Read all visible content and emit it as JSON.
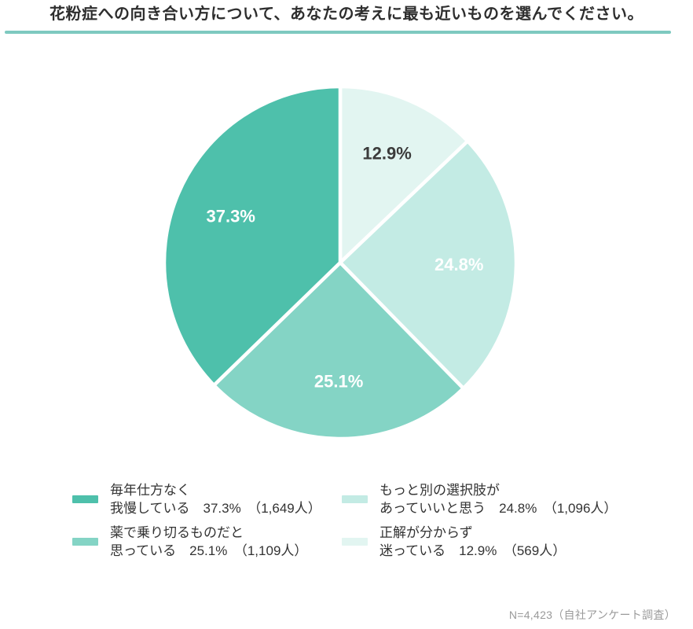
{
  "title": "花粉症への向き合い方について、あなたの考えに最も近いものを選んでください。",
  "divider_color": "#7ec9c0",
  "chart_data": {
    "type": "pie",
    "title": "花粉症への向き合い方について、あなたの考えに最も近いものを選んでください。",
    "direction": "clockwise",
    "start_angle_deg": 0,
    "slice_gap_color": "#ffffff",
    "segments": [
      {
        "label": "正解が分からず迷っている",
        "value_pct": 12.9,
        "count": 569,
        "pct_label": "12.9%",
        "color": "#e2f5f1",
        "pct_label_color": "#3b3b3b",
        "legend_line1": "正解が分からず",
        "legend_line2": "迷っている　12.9%　（569人）"
      },
      {
        "label": "もっと別の選択肢があっていいと思う",
        "value_pct": 24.8,
        "count": 1096,
        "pct_label": "24.8%",
        "color": "#c3ebe4",
        "pct_label_color": "#ffffff",
        "legend_line1": "もっと別の選択肢が",
        "legend_line2": "あっていいと思う　24.8%　（1,096人）"
      },
      {
        "label": "薬で乗り切るものだと思っている",
        "value_pct": 25.1,
        "count": 1109,
        "pct_label": "25.1%",
        "color": "#84d4c5",
        "pct_label_color": "#ffffff",
        "legend_line1": "薬で乗り切るものだと",
        "legend_line2": "思っている　25.1%　（1,109人）"
      },
      {
        "label": "毎年仕方なく我慢している",
        "value_pct": 37.3,
        "count": 1649,
        "pct_label": "37.3%",
        "color": "#4ec0ab",
        "pct_label_color": "#ffffff",
        "legend_line1": "毎年仕方なく",
        "legend_line2": "我慢している　37.3%　（1,649人）"
      }
    ]
  },
  "footer": {
    "note": "N=4,423（自社アンケート調査）"
  }
}
